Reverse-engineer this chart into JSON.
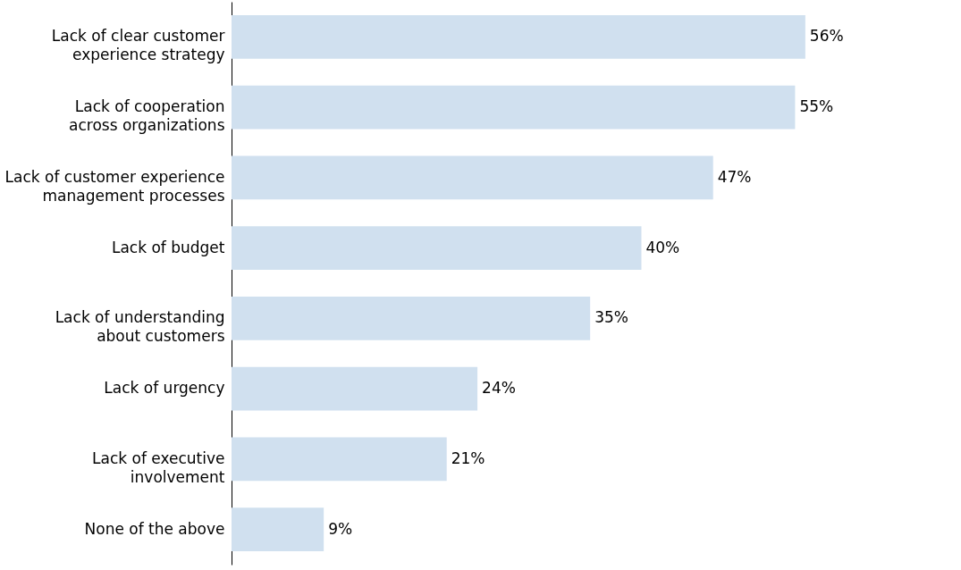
{
  "chart_data": {
    "type": "bar",
    "orientation": "horizontal",
    "color": "#d0e0ef",
    "categories": [
      "Lack of clear customer\nexperience strategy",
      "Lack of cooperation\nacross organizations",
      "Lack of customer experience\nmanagement processes",
      "Lack of budget",
      "Lack of understanding\nabout customers",
      "Lack of urgency",
      "Lack of executive\ninvolvement",
      "None of the above"
    ],
    "values": [
      56,
      55,
      47,
      40,
      35,
      24,
      21,
      9
    ],
    "value_labels": [
      "56%",
      "55%",
      "47%",
      "40%",
      "35%",
      "24%",
      "21%",
      "9%"
    ]
  }
}
